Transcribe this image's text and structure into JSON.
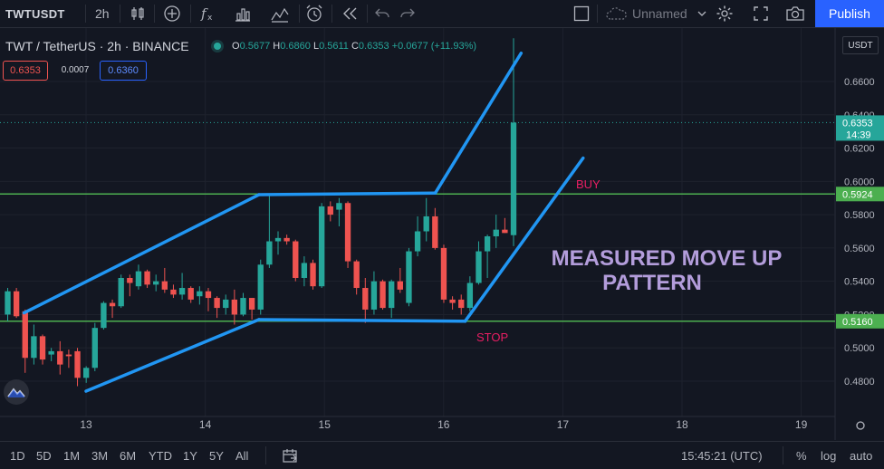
{
  "toolbar": {
    "symbol": "TWTUSDT",
    "interval": "2h",
    "layout_name": "Unnamed",
    "publish": "Publish"
  },
  "header": {
    "symbol_line": "TWT / TetherUS · 2h · BINANCE",
    "o_label": "O",
    "o": "0.5677",
    "h_label": "H",
    "h": "0.6860",
    "l_label": "L",
    "l": "0.5611",
    "c_label": "C",
    "c": "0.6353",
    "change": "+0.0677 (+11.93%)",
    "bid": "0.6353",
    "spread": "0.0007",
    "ask": "0.6360",
    "currency": "USDT"
  },
  "colors": {
    "up": "#26a69a",
    "down": "#ef5350",
    "pattern_lines": "#2196f3",
    "level_lines": "#4caf50",
    "buy_text": "#e91e63",
    "stop_text": "#e91e63",
    "annotation_text": "#b39ddb",
    "background": "#131722"
  },
  "chart_data": {
    "type": "candlestick",
    "x_ticks": [
      "13",
      "14",
      "15",
      "16",
      "17",
      "18",
      "19"
    ],
    "y_ticks": [
      "0.4800",
      "0.5000",
      "0.5200",
      "0.5400",
      "0.5600",
      "0.5800",
      "0.6000",
      "0.6200",
      "0.6400",
      "0.6600"
    ],
    "ylim": [
      0.465,
      0.677
    ],
    "price_labels": [
      {
        "value": 0.6353,
        "text": "0.6353",
        "countdown": "14:39",
        "color": "#26a69a"
      },
      {
        "value": 0.5924,
        "text": "0.5924",
        "color": "#4caf50"
      },
      {
        "value": 0.516,
        "text": "0.5160",
        "color": "#4caf50"
      }
    ],
    "levels": [
      {
        "name": "buy-level",
        "value": 0.5924
      },
      {
        "name": "stop-level",
        "value": 0.516
      }
    ],
    "candles": [
      {
        "o": 0.52,
        "h": 0.536,
        "l": 0.516,
        "c": 0.534
      },
      {
        "o": 0.534,
        "h": 0.536,
        "l": 0.518,
        "c": 0.519
      },
      {
        "o": 0.522,
        "h": 0.523,
        "l": 0.485,
        "c": 0.494
      },
      {
        "o": 0.494,
        "h": 0.514,
        "l": 0.49,
        "c": 0.507
      },
      {
        "o": 0.507,
        "h": 0.508,
        "l": 0.49,
        "c": 0.493
      },
      {
        "o": 0.496,
        "h": 0.5,
        "l": 0.492,
        "c": 0.498
      },
      {
        "o": 0.498,
        "h": 0.504,
        "l": 0.484,
        "c": 0.49
      },
      {
        "o": 0.496,
        "h": 0.499,
        "l": 0.488,
        "c": 0.495
      },
      {
        "o": 0.498,
        "h": 0.5,
        "l": 0.477,
        "c": 0.482
      },
      {
        "o": 0.482,
        "h": 0.489,
        "l": 0.479,
        "c": 0.488
      },
      {
        "o": 0.488,
        "h": 0.515,
        "l": 0.486,
        "c": 0.512
      },
      {
        "o": 0.512,
        "h": 0.528,
        "l": 0.511,
        "c": 0.527
      },
      {
        "o": 0.527,
        "h": 0.529,
        "l": 0.518,
        "c": 0.525
      },
      {
        "o": 0.525,
        "h": 0.544,
        "l": 0.524,
        "c": 0.542
      },
      {
        "o": 0.542,
        "h": 0.544,
        "l": 0.531,
        "c": 0.539
      },
      {
        "o": 0.537,
        "h": 0.55,
        "l": 0.535,
        "c": 0.546
      },
      {
        "o": 0.546,
        "h": 0.547,
        "l": 0.536,
        "c": 0.538
      },
      {
        "o": 0.538,
        "h": 0.544,
        "l": 0.534,
        "c": 0.54
      },
      {
        "o": 0.54,
        "h": 0.548,
        "l": 0.533,
        "c": 0.535
      },
      {
        "o": 0.535,
        "h": 0.538,
        "l": 0.53,
        "c": 0.532
      },
      {
        "o": 0.532,
        "h": 0.545,
        "l": 0.529,
        "c": 0.536
      },
      {
        "o": 0.536,
        "h": 0.537,
        "l": 0.527,
        "c": 0.529
      },
      {
        "o": 0.531,
        "h": 0.537,
        "l": 0.526,
        "c": 0.534
      },
      {
        "o": 0.534,
        "h": 0.536,
        "l": 0.522,
        "c": 0.53
      },
      {
        "o": 0.53,
        "h": 0.531,
        "l": 0.518,
        "c": 0.524
      },
      {
        "o": 0.524,
        "h": 0.532,
        "l": 0.52,
        "c": 0.529
      },
      {
        "o": 0.529,
        "h": 0.535,
        "l": 0.514,
        "c": 0.52
      },
      {
        "o": 0.52,
        "h": 0.533,
        "l": 0.519,
        "c": 0.53
      },
      {
        "o": 0.53,
        "h": 0.53,
        "l": 0.517,
        "c": 0.523
      },
      {
        "o": 0.523,
        "h": 0.553,
        "l": 0.52,
        "c": 0.55
      },
      {
        "o": 0.55,
        "h": 0.592,
        "l": 0.548,
        "c": 0.564
      },
      {
        "o": 0.564,
        "h": 0.57,
        "l": 0.556,
        "c": 0.566
      },
      {
        "o": 0.566,
        "h": 0.568,
        "l": 0.562,
        "c": 0.564
      },
      {
        "o": 0.564,
        "h": 0.565,
        "l": 0.54,
        "c": 0.542
      },
      {
        "o": 0.542,
        "h": 0.555,
        "l": 0.537,
        "c": 0.551
      },
      {
        "o": 0.551,
        "h": 0.553,
        "l": 0.535,
        "c": 0.537
      },
      {
        "o": 0.537,
        "h": 0.587,
        "l": 0.536,
        "c": 0.585
      },
      {
        "o": 0.585,
        "h": 0.588,
        "l": 0.576,
        "c": 0.58
      },
      {
        "o": 0.583,
        "h": 0.59,
        "l": 0.573,
        "c": 0.587
      },
      {
        "o": 0.587,
        "h": 0.588,
        "l": 0.548,
        "c": 0.552
      },
      {
        "o": 0.552,
        "h": 0.553,
        "l": 0.532,
        "c": 0.536
      },
      {
        "o": 0.536,
        "h": 0.542,
        "l": 0.515,
        "c": 0.523
      },
      {
        "o": 0.523,
        "h": 0.546,
        "l": 0.52,
        "c": 0.54
      },
      {
        "o": 0.54,
        "h": 0.541,
        "l": 0.523,
        "c": 0.524
      },
      {
        "o": 0.524,
        "h": 0.541,
        "l": 0.518,
        "c": 0.54
      },
      {
        "o": 0.54,
        "h": 0.548,
        "l": 0.533,
        "c": 0.535
      },
      {
        "o": 0.527,
        "h": 0.56,
        "l": 0.525,
        "c": 0.558
      },
      {
        "o": 0.558,
        "h": 0.579,
        "l": 0.555,
        "c": 0.57
      },
      {
        "o": 0.57,
        "h": 0.59,
        "l": 0.564,
        "c": 0.579
      },
      {
        "o": 0.579,
        "h": 0.584,
        "l": 0.559,
        "c": 0.56
      },
      {
        "o": 0.56,
        "h": 0.562,
        "l": 0.527,
        "c": 0.529
      },
      {
        "o": 0.529,
        "h": 0.531,
        "l": 0.523,
        "c": 0.527
      },
      {
        "o": 0.529,
        "h": 0.532,
        "l": 0.52,
        "c": 0.524
      },
      {
        "o": 0.524,
        "h": 0.543,
        "l": 0.522,
        "c": 0.539
      },
      {
        "o": 0.539,
        "h": 0.564,
        "l": 0.538,
        "c": 0.558
      },
      {
        "o": 0.558,
        "h": 0.568,
        "l": 0.542,
        "c": 0.567
      },
      {
        "o": 0.567,
        "h": 0.58,
        "l": 0.56,
        "c": 0.571
      },
      {
        "o": 0.571,
        "h": 0.578,
        "l": 0.569,
        "c": 0.569
      },
      {
        "o": 0.5677,
        "h": 0.686,
        "l": 0.5611,
        "c": 0.6353
      }
    ],
    "pattern_lines": [
      {
        "name": "channel-lower-left",
        "from": {
          "x": "13",
          "y": 0.474
        },
        "to": {
          "x": "14.45",
          "y": 0.517
        }
      },
      {
        "name": "channel-upper-left",
        "from": {
          "x": "12.48",
          "y": 0.521
        },
        "to": {
          "x": "14.45",
          "y": 0.592
        }
      },
      {
        "name": "range-top",
        "from": {
          "x": "14.45",
          "y": 0.592
        },
        "to": {
          "x": "15.93",
          "y": 0.593
        }
      },
      {
        "name": "range-bottom",
        "from": {
          "x": "14.45",
          "y": 0.517
        },
        "to": {
          "x": "16.18",
          "y": 0.516
        }
      },
      {
        "name": "breakout-upper",
        "from": {
          "x": "15.93",
          "y": 0.593
        },
        "to": {
          "x": "16.65",
          "y": 0.677
        }
      },
      {
        "name": "breakout-lower",
        "from": {
          "x": "16.18",
          "y": 0.516
        },
        "to": {
          "x": "17.17",
          "y": 0.614
        }
      }
    ],
    "annotations": {
      "buy": "BUY",
      "stop": "STOP",
      "title_line1": "MEASURED MOVE UP",
      "title_line2": "PATTERN"
    }
  },
  "bottombar": {
    "ranges": [
      "1D",
      "5D",
      "1M",
      "3M",
      "6M",
      "YTD",
      "1Y",
      "5Y",
      "All"
    ],
    "time": "15:45:21 (UTC)",
    "percent": "%",
    "log": "log",
    "auto": "auto"
  }
}
